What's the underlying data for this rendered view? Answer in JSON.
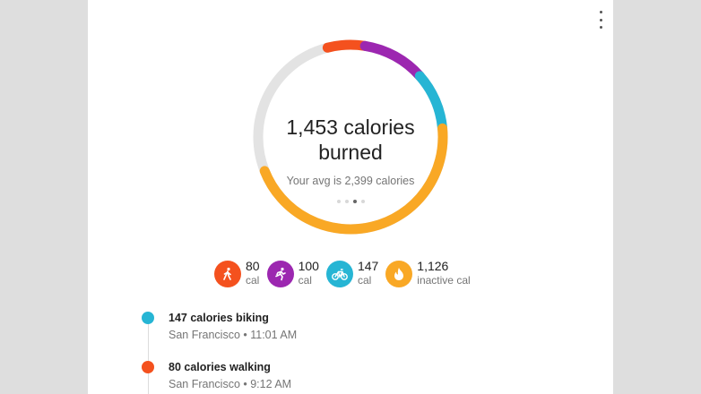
{
  "header": {
    "menu_icon": "more-vert-icon"
  },
  "summary": {
    "calories_line1": "1,453 calories",
    "calories_line2": "burned",
    "average_text": "Your avg is 2,399 calories",
    "pager": {
      "pages": 4,
      "active_index": 2
    }
  },
  "ring": {
    "track_color": "#e3e3e3",
    "segments": [
      {
        "activity": "walking",
        "color": "#f4511e",
        "start_fraction": 0.96,
        "end_fraction": 0.025
      },
      {
        "activity": "running",
        "color": "#9c27b0",
        "start_fraction": 0.025,
        "end_fraction": 0.135
      },
      {
        "activity": "biking",
        "color": "#26b5d4",
        "start_fraction": 0.135,
        "end_fraction": 0.235
      },
      {
        "activity": "inactive",
        "color": "#f9a825",
        "start_fraction": 0.235,
        "end_fraction": 0.69
      }
    ]
  },
  "activities": [
    {
      "name": "walking",
      "icon": "walking-icon",
      "color": "#f4511e",
      "value": "80",
      "unit": "cal"
    },
    {
      "name": "running",
      "icon": "running-icon",
      "color": "#9c27b0",
      "value": "100",
      "unit": "cal"
    },
    {
      "name": "biking",
      "icon": "bike-icon",
      "color": "#26b5d4",
      "value": "147",
      "unit": "cal"
    },
    {
      "name": "inactive",
      "icon": "flame-icon",
      "color": "#f9a825",
      "value": "1,126",
      "unit": "inactive cal"
    }
  ],
  "timeline": [
    {
      "color": "#26b5d4",
      "title": "147 calories biking",
      "subtitle": "San Francisco • 11:01 AM"
    },
    {
      "color": "#f4511e",
      "title": "80 calories walking",
      "subtitle": "San Francisco • 9:12 AM"
    }
  ]
}
